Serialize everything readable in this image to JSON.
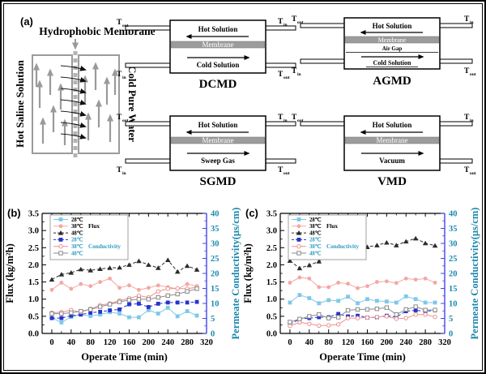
{
  "figure": {
    "panel_a_label": "(a)"
  },
  "labels": {
    "temperature_symbol": "T"
  },
  "schematic": {
    "title": "Hydrophobic Membrane",
    "left_label": "Hot Saline Solution",
    "right_label": "Cold Pure Water"
  },
  "modules": {
    "dcmd": {
      "title": "DCMD",
      "hot": "Hot Solution",
      "membrane": "Membrane",
      "bottom": "Cold Solution",
      "corners": {
        "tl": "out",
        "bl": "in",
        "tr": "in",
        "br": "out"
      }
    },
    "agmd": {
      "title": "AGMD",
      "hot": "Hot Solution",
      "membrane": "Membrane",
      "air_gap": "Air Gap",
      "bottom": "Cold Solution",
      "corners": {
        "tl": "out",
        "bl": "in",
        "tr": "in",
        "br": "out"
      }
    },
    "sgmd": {
      "title": "SGMD",
      "hot": "Hot Solution",
      "membrane": "Membrane",
      "bottom": "Sweep Gas",
      "corners": {
        "tl": "out",
        "bl": "in",
        "tr": "in",
        "br": "out"
      }
    },
    "vmd": {
      "title": "VMD",
      "hot": "Hot Solution",
      "membrane": "Membrane",
      "bottom": "Vacuum",
      "corners": {
        "tl": "out",
        "tr": "in",
        "br": "out"
      }
    }
  },
  "chart_data": [
    {
      "panel_label": "(b)",
      "type": "line",
      "xlabel": "Operate Time (min)",
      "ylabel_left": "Flux (kg/m²h)",
      "ylabel_right": "Permeate Conductivity(μs/cm)",
      "xlim": [
        -20,
        320
      ],
      "x_ticks": [
        0,
        40,
        80,
        120,
        160,
        200,
        240,
        280,
        320
      ],
      "ylim_left": [
        0,
        3.5
      ],
      "y_ticks_left": [
        "0.0",
        "0.5",
        "1.0",
        "1.5",
        "2.0",
        "2.5",
        "3.0",
        "3.5"
      ],
      "ylim_right": [
        0,
        40
      ],
      "y_ticks_right": [
        0,
        5,
        10,
        15,
        20,
        25,
        30,
        35,
        40
      ],
      "right_axis_color": "#4444ee",
      "right_text_color": "#1c89ad",
      "legend_groups": [
        {
          "label": "Flux",
          "row": 1,
          "color": "#000000"
        },
        {
          "label": "Conductivity",
          "row": 4,
          "color": "#2e9bbf"
        }
      ],
      "x": [
        0,
        20,
        40,
        60,
        80,
        100,
        120,
        140,
        160,
        180,
        200,
        220,
        240,
        260,
        280,
        300
      ],
      "series": [
        {
          "id": "flux-28",
          "name": "28℃",
          "group": "Flux",
          "axis": "left",
          "color": "#7ec8e8",
          "label_color": "#000000",
          "marker": "square-filled",
          "line": "solid",
          "values": [
            0.45,
            0.32,
            0.48,
            0.55,
            0.51,
            0.55,
            0.62,
            0.58,
            0.47,
            0.47,
            0.68,
            0.58,
            0.75,
            0.5,
            0.65,
            0.52
          ]
        },
        {
          "id": "flux-38",
          "name": "38℃",
          "group": "Flux",
          "axis": "left",
          "color": "#f4a7a3",
          "label_color": "#000000",
          "marker": "circle-filled",
          "line": "solid",
          "values": [
            1.27,
            1.48,
            1.3,
            1.44,
            1.38,
            1.5,
            1.6,
            1.33,
            1.4,
            1.27,
            1.33,
            1.4,
            1.35,
            1.3,
            1.44,
            1.38
          ]
        },
        {
          "id": "flux-48",
          "name": "48℃",
          "group": "Flux",
          "axis": "left",
          "color": "#2b2b2b",
          "label_color": "#000000",
          "marker": "triangle-filled",
          "line": "dashed",
          "values": [
            1.57,
            1.72,
            1.77,
            1.87,
            1.84,
            1.88,
            1.91,
            1.92,
            2.0,
            2.11,
            2.0,
            1.91,
            2.14,
            1.8,
            1.97,
            1.86
          ]
        },
        {
          "id": "cond-28",
          "name": "28℃",
          "group": "Conductivity",
          "axis": "right",
          "color": "#2633cc",
          "label_color": "#2e9bbf",
          "marker": "square-filled",
          "line": "dashed",
          "values": [
            5.1,
            5.1,
            5.9,
            6.3,
            6.9,
            7.2,
            7.7,
            8.0,
            9.7,
            9.9,
            8.8,
            9.9,
            10.3,
            10.3,
            10.3,
            10.5
          ]
        },
        {
          "id": "cond-38",
          "name": "38℃",
          "group": "Conductivity",
          "axis": "right",
          "color": "#ef8f8f",
          "label_color": "#2e9bbf",
          "marker": "circle-open",
          "line": "solid",
          "values": [
            6.9,
            7.1,
            7.8,
            7.1,
            8.2,
            9.4,
            10.0,
            10.9,
            11.7,
            12.6,
            12.0,
            14.0,
            14.9,
            15.0,
            14.9,
            15.4
          ]
        },
        {
          "id": "cond-48",
          "name": "48℃",
          "group": "Conductivity",
          "axis": "right",
          "color": "#8a8a8a",
          "label_color": "#2e9bbf",
          "marker": "square-open",
          "line": "solid",
          "values": [
            6.6,
            6.6,
            6.9,
            7.4,
            8.0,
            8.9,
            9.7,
            10.5,
            11.1,
            11.4,
            11.4,
            12.0,
            12.6,
            13.1,
            14.0,
            14.9
          ]
        }
      ]
    },
    {
      "panel_label": "(c)",
      "type": "line",
      "xlabel": "Operate Time (min)",
      "ylabel_left": "Flux (kg/m²h)",
      "ylabel_right": "Permeate Conductivity(μs/cm)",
      "xlim": [
        -20,
        320
      ],
      "x_ticks": [
        0,
        40,
        80,
        120,
        160,
        200,
        240,
        280,
        320
      ],
      "ylim_left": [
        0,
        3.5
      ],
      "y_ticks_left": [
        "0.0",
        "0.5",
        "1.0",
        "1.5",
        "2.0",
        "2.5",
        "3.0",
        "3.5"
      ],
      "ylim_right": [
        0,
        40
      ],
      "y_ticks_right": [
        0,
        5,
        10,
        15,
        20,
        25,
        30,
        35,
        40
      ],
      "right_axis_color": "#4444ee",
      "right_text_color": "#1c89ad",
      "legend_groups": [
        {
          "label": "Flux",
          "row": 1,
          "color": "#000000"
        },
        {
          "label": "Conductivity",
          "row": 4,
          "color": "#2e9bbf"
        }
      ],
      "x": [
        0,
        20,
        40,
        60,
        80,
        100,
        120,
        140,
        160,
        180,
        200,
        220,
        240,
        260,
        280,
        300
      ],
      "series": [
        {
          "id": "flux-28",
          "name": "28℃",
          "group": "Flux",
          "axis": "left",
          "color": "#7ec8e8",
          "label_color": "#000000",
          "marker": "square-filled",
          "line": "solid",
          "values": [
            0.9,
            1.12,
            1.03,
            0.88,
            0.97,
            0.95,
            1.07,
            0.88,
            1.0,
            0.95,
            0.93,
            0.9,
            1.08,
            1.0,
            0.9,
            0.9
          ]
        },
        {
          "id": "flux-38",
          "name": "38℃",
          "group": "Flux",
          "axis": "left",
          "color": "#f4a7a3",
          "label_color": "#000000",
          "marker": "circle-filled",
          "line": "solid",
          "values": [
            1.48,
            1.63,
            1.6,
            1.35,
            1.35,
            1.48,
            1.45,
            1.32,
            1.38,
            1.5,
            1.52,
            1.47,
            1.6,
            1.57,
            1.6,
            1.48
          ]
        },
        {
          "id": "flux-48",
          "name": "48℃",
          "group": "Flux",
          "axis": "left",
          "color": "#2b2b2b",
          "label_color": "#000000",
          "marker": "triangle-filled",
          "line": "dashed",
          "values": [
            2.12,
            1.9,
            1.99,
            2.1,
            2.25,
            2.45,
            2.32,
            2.42,
            2.52,
            2.57,
            2.65,
            2.57,
            2.68,
            2.77,
            2.63,
            2.56
          ]
        },
        {
          "id": "cond-28",
          "name": "28℃",
          "group": "Conductivity",
          "axis": "right",
          "color": "#2633cc",
          "label_color": "#2e9bbf",
          "marker": "square-filled",
          "line": "dashed",
          "values": [
            3.1,
            4.8,
            5.1,
            5.4,
            5.4,
            6.5,
            5.7,
            5.9,
            5.3,
            5.4,
            5.9,
            5.5,
            7.4,
            7.7,
            7.4,
            7.7
          ]
        },
        {
          "id": "cond-38",
          "name": "38℃",
          "group": "Conductivity",
          "axis": "right",
          "color": "#ef8f8f",
          "label_color": "#2e9bbf",
          "marker": "circle-open",
          "line": "solid",
          "values": [
            2.5,
            3.7,
            3.2,
            2.6,
            2.7,
            3.0,
            5.1,
            5.1,
            5.3,
            5.5,
            5.7,
            4.9,
            5.1,
            6.3,
            6.3,
            5.5
          ]
        },
        {
          "id": "cond-48",
          "name": "48℃",
          "group": "Conductivity",
          "axis": "right",
          "color": "#8a8a8a",
          "label_color": "#2e9bbf",
          "marker": "square-open",
          "line": "solid",
          "values": [
            3.8,
            4.8,
            5.7,
            6.3,
            5.1,
            5.4,
            7.7,
            8.0,
            8.0,
            8.2,
            8.6,
            6.3,
            8.0,
            8.9,
            7.8,
            7.8
          ]
        }
      ]
    }
  ]
}
